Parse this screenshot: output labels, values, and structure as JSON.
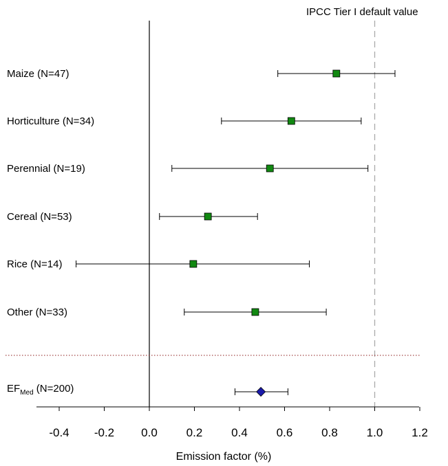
{
  "chart_data": {
    "type": "forest",
    "xlabel": "Emission factor (%)",
    "xlim": [
      -0.5,
      1.2
    ],
    "xticks": [
      "-0.4",
      "-0.2",
      "0.0",
      "0.2",
      "0.4",
      "0.6",
      "0.8",
      "1.0",
      "1.2"
    ],
    "xtick_values": [
      -0.4,
      -0.2,
      0.0,
      0.2,
      0.4,
      0.6,
      0.8,
      1.0,
      1.2
    ],
    "zero_line": 0.0,
    "reference_line": {
      "x": 1.0,
      "label": "IPCC Tier I default value",
      "style": "dashed",
      "color": "#aaaaaa"
    },
    "separator": {
      "style": "dotted",
      "color": "#8b1a1a"
    },
    "categories": [
      {
        "label": "Maize (N=47)",
        "estimate": 0.83,
        "lower": 0.57,
        "upper": 1.09,
        "marker": "square",
        "color": "#118811"
      },
      {
        "label": "Horticulture (N=34)",
        "estimate": 0.63,
        "lower": 0.32,
        "upper": 0.94,
        "marker": "square",
        "color": "#118811"
      },
      {
        "label": "Perennial (N=19)",
        "estimate": 0.535,
        "lower": 0.1,
        "upper": 0.97,
        "marker": "square",
        "color": "#118811"
      },
      {
        "label": "Cereal (N=53)",
        "estimate": 0.26,
        "lower": 0.045,
        "upper": 0.48,
        "marker": "square",
        "color": "#118811"
      },
      {
        "label": "Rice (N=14)",
        "estimate": 0.195,
        "lower": -0.325,
        "upper": 0.71,
        "marker": "square",
        "color": "#118811"
      },
      {
        "label": "Other (N=33)",
        "estimate": 0.47,
        "lower": 0.155,
        "upper": 0.785,
        "marker": "square",
        "color": "#118811"
      }
    ],
    "summary": {
      "label_main": "EF",
      "label_sub": "Med",
      "label_rest": " (N=200)",
      "estimate": 0.495,
      "lower": 0.38,
      "upper": 0.615,
      "marker": "diamond",
      "color": "#1a1aaa"
    }
  }
}
